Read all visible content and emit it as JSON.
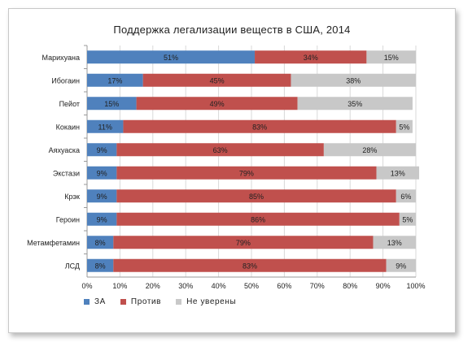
{
  "chart_data": {
    "type": "bar",
    "orientation": "horizontal",
    "stacked": true,
    "title": "Поддержка легализации веществ в США, 2014",
    "categories": [
      "Марихуана",
      "Ибогаин",
      "Пейот",
      "Кокаин",
      "Аяхуаска",
      "Экстази",
      "Крэк",
      "Героин",
      "Метамфетамин",
      "ЛСД"
    ],
    "series": [
      {
        "name": "ЗА",
        "color": "#4f81bd",
        "values": [
          51,
          17,
          15,
          11,
          9,
          9,
          9,
          9,
          8,
          8
        ]
      },
      {
        "name": "Против",
        "color": "#c0504d",
        "values": [
          34,
          45,
          49,
          83,
          63,
          79,
          85,
          86,
          79,
          83
        ]
      },
      {
        "name": "Не уверены",
        "color": "#c8c8c8",
        "values": [
          15,
          38,
          35,
          5,
          28,
          13,
          6,
          5,
          13,
          9
        ]
      }
    ],
    "xlim": [
      0,
      100
    ],
    "x_ticks": [
      "0%",
      "10%",
      "20%",
      "30%",
      "40%",
      "50%",
      "60%",
      "70%",
      "80%",
      "90%",
      "100%"
    ],
    "grid": "vertical",
    "legend": "bottom-left",
    "unit": "%"
  }
}
